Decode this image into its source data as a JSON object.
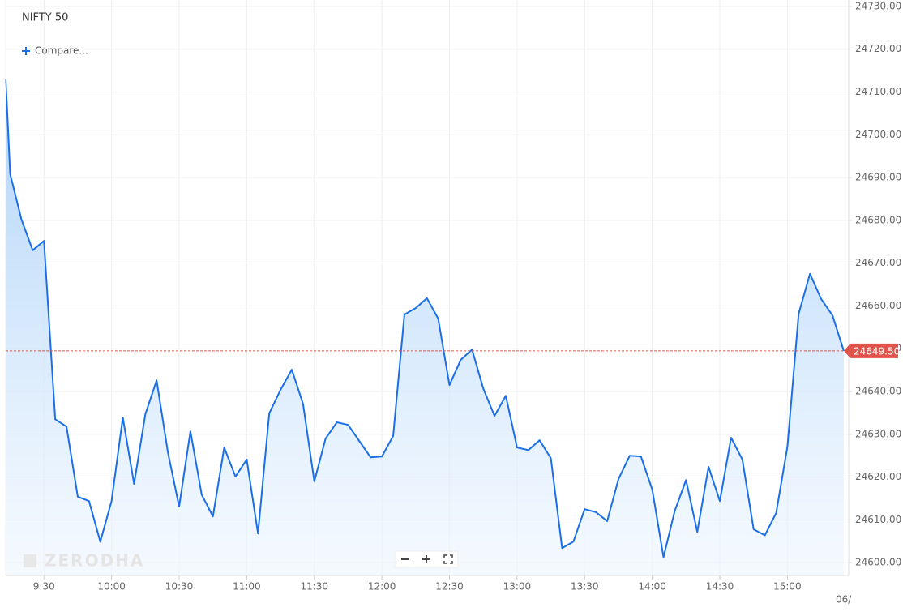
{
  "header": {
    "title": "NIFTY 50",
    "compare": "Compare...",
    "watermark": "ZERODHA"
  },
  "chart_data": {
    "type": "line",
    "color": "#1a6fe8",
    "grid": true,
    "x": [
      553,
      555,
      560,
      565,
      570,
      575,
      580,
      585,
      590,
      595,
      600,
      605,
      610,
      615,
      620,
      625,
      630,
      635,
      640,
      645,
      650,
      655,
      660,
      665,
      670,
      675,
      680,
      685,
      690,
      695,
      700,
      705,
      710,
      715,
      720,
      725,
      730,
      735,
      740,
      745,
      750,
      755,
      760,
      765,
      770,
      775,
      780,
      785,
      790,
      795,
      800,
      805,
      810,
      815,
      820,
      825,
      830,
      835,
      840,
      845,
      850,
      855,
      860,
      865,
      870,
      875,
      880,
      885,
      890,
      895,
      900,
      905,
      910,
      915,
      920,
      925
    ],
    "values": [
      24712.9,
      24690.8,
      24680.2,
      24673.0,
      24675.2,
      24633.5,
      24631.8,
      24615.4,
      24614.4,
      24604.9,
      24614.4,
      24633.9,
      24618.4,
      24634.7,
      24642.6,
      24625.8,
      24613.1,
      24630.7,
      24615.9,
      24610.8,
      24626.9,
      24620.1,
      24624.1,
      24606.8,
      24634.9,
      24640.4,
      24645.1,
      24637.1,
      24619.0,
      24629.0,
      24632.8,
      24632.2,
      24628.4,
      24624.6,
      24624.8,
      24629.6,
      24658.0,
      24659.5,
      24661.8,
      24657.0,
      24641.5,
      24647.4,
      24649.8,
      24640.7,
      24634.3,
      24639.0,
      24626.9,
      24626.3,
      24628.6,
      24624.4,
      24603.4,
      24604.9,
      24612.5,
      24611.8,
      24609.7,
      24619.5,
      24625.0,
      24624.8,
      24617.1,
      24601.3,
      24612.1,
      24619.3,
      24607.2,
      24622.4,
      24614.4,
      24629.2,
      24624.1,
      24607.8,
      24606.4,
      24611.6,
      24627.1,
      24658.2,
      24667.5,
      24661.6,
      24657.8,
      24649.5
    ],
    "xlim": [
      553,
      927.2
    ],
    "xticks": [
      {
        "value": 570,
        "label": "9:30"
      },
      {
        "value": 600,
        "label": "10:00"
      },
      {
        "value": 630,
        "label": "10:30"
      },
      {
        "value": 660,
        "label": "11:00"
      },
      {
        "value": 690,
        "label": "11:30"
      },
      {
        "value": 720,
        "label": "12:00"
      },
      {
        "value": 750,
        "label": "12:30"
      },
      {
        "value": 780,
        "label": "13:00"
      },
      {
        "value": 810,
        "label": "13:30"
      },
      {
        "value": 840,
        "label": "14:00"
      },
      {
        "value": 870,
        "label": "14:30"
      },
      {
        "value": 900,
        "label": "15:00"
      }
    ],
    "ylim": [
      24597,
      24731.5
    ],
    "yticks": [
      {
        "value": 24600,
        "label": "24600.00"
      },
      {
        "value": 24610,
        "label": "24610.00"
      },
      {
        "value": 24620,
        "label": "24620.00"
      },
      {
        "value": 24630,
        "label": "24630.00"
      },
      {
        "value": 24640,
        "label": "24640.00"
      },
      {
        "value": 24650,
        "label": "24650.00"
      },
      {
        "value": 24660,
        "label": "24660.00"
      },
      {
        "value": 24670,
        "label": "24670.00"
      },
      {
        "value": 24680,
        "label": "24680.00"
      },
      {
        "value": 24690,
        "label": "24690.00"
      },
      {
        "value": 24700,
        "label": "24700.00"
      },
      {
        "value": 24710,
        "label": "24710.00"
      },
      {
        "value": 24720,
        "label": "24720.00"
      },
      {
        "value": 24730,
        "label": "24730.00"
      }
    ],
    "last_price": {
      "value": 24649.5,
      "label": "24649.50"
    },
    "date_label": "06/"
  }
}
